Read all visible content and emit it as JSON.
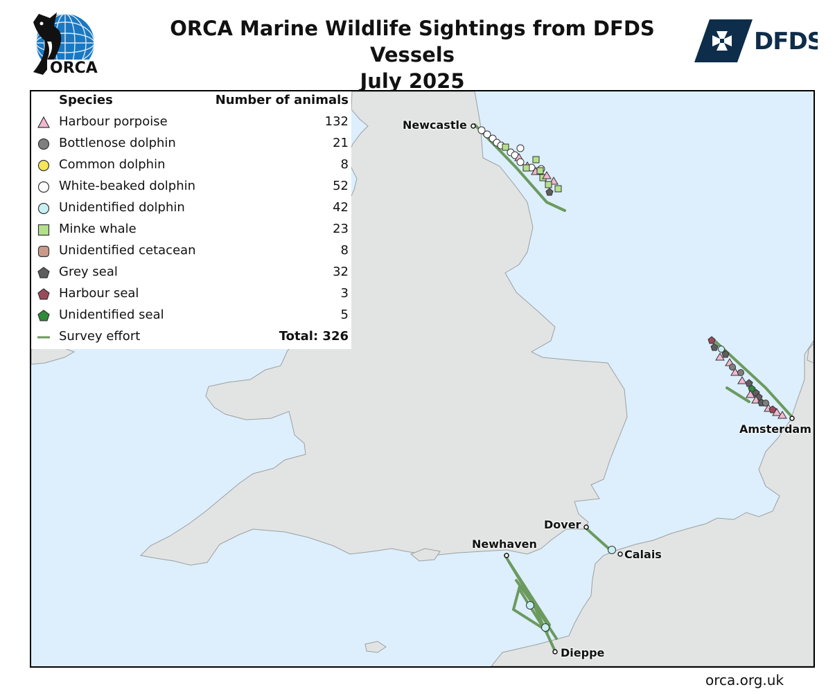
{
  "header": {
    "title_line1": "ORCA Marine Wildlife Sightings from DFDS Vessels",
    "title_line2": "July 2025"
  },
  "logos": {
    "orca_text": "ORCA",
    "dfds_text": "DFDS"
  },
  "legend": {
    "species_header": "Species",
    "count_header": "Number of animals",
    "items": [
      {
        "name": "Harbour porpoise",
        "count": "132",
        "symbol": "triangle",
        "color": "#f2b8cf"
      },
      {
        "name": "Bottlenose dolphin",
        "count": "21",
        "symbol": "circle",
        "color": "#7f7f7f"
      },
      {
        "name": "Common dolphin",
        "count": "8",
        "symbol": "circle",
        "color": "#f5e65a"
      },
      {
        "name": "White-beaked dolphin",
        "count": "52",
        "symbol": "circle",
        "color": "#ffffff"
      },
      {
        "name": "Unidentified dolphin",
        "count": "42",
        "symbol": "circle",
        "color": "#c8f0f4"
      },
      {
        "name": "Minke whale",
        "count": "23",
        "symbol": "square",
        "color": "#b4e08c"
      },
      {
        "name": "Unidentified cetacean",
        "count": "8",
        "symbol": "rounded-square",
        "color": "#c99a8c"
      },
      {
        "name": "Grey seal",
        "count": "32",
        "symbol": "pentagon",
        "color": "#5e5e5e"
      },
      {
        "name": "Harbour seal",
        "count": "3",
        "symbol": "pentagon",
        "color": "#9a4a5a"
      },
      {
        "name": "Unidentified seal",
        "count": "5",
        "symbol": "pentagon",
        "color": "#2e8b3a"
      },
      {
        "name": "Survey effort",
        "count": "Total: 326",
        "symbol": "line",
        "color": "#6b9a5e"
      }
    ]
  },
  "ports": {
    "newcastle": "Newcastle",
    "amsterdam": "Amsterdam",
    "dover": "Dover",
    "newhaven": "Newhaven",
    "calais": "Calais",
    "dieppe": "Dieppe"
  },
  "footer": {
    "url": "orca.org.uk"
  },
  "colors": {
    "sea": "#ddeefc",
    "land": "#e2e4e4",
    "coast": "#9aa0a0",
    "effort": "#6b9a5e",
    "dfds_navy": "#0d2d4a"
  }
}
